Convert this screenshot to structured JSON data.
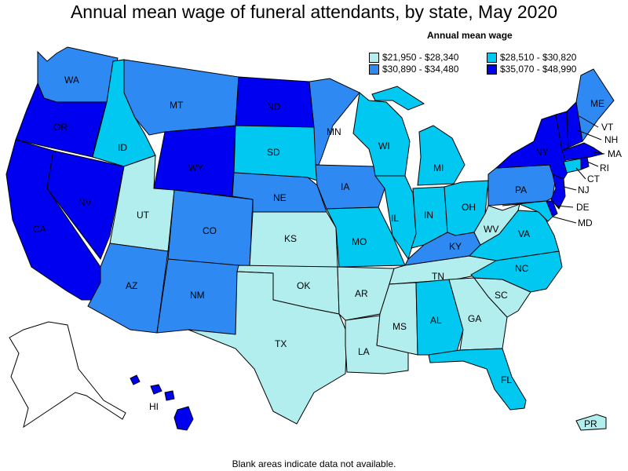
{
  "title": "Annual mean wage of funeral attendants, by state, May 2020",
  "legend": {
    "title": "Annual mean wage",
    "items": [
      {
        "label": "$21,950 - $28,340",
        "color": "#b3eeee"
      },
      {
        "label": "$28,510 - $30,820",
        "color": "#00c8f0"
      },
      {
        "label": "$30,890 - $34,480",
        "color": "#2e8af2"
      },
      {
        "label": "$35,070 - $48,990",
        "color": "#0000f0"
      }
    ]
  },
  "footnote": "Blank areas indicate data not available.",
  "states": {
    "WA": {
      "label": "WA",
      "tier": 2
    },
    "OR": {
      "label": "OR",
      "tier": 3
    },
    "CA": {
      "label": "CA",
      "tier": 3
    },
    "NV": {
      "label": "NV",
      "tier": 3
    },
    "ID": {
      "label": "ID",
      "tier": 1
    },
    "MT": {
      "label": "MT",
      "tier": 2
    },
    "WY": {
      "label": "WY",
      "tier": 3
    },
    "UT": {
      "label": "UT",
      "tier": 0
    },
    "AZ": {
      "label": "AZ",
      "tier": 2
    },
    "CO": {
      "label": "CO",
      "tier": 2
    },
    "NM": {
      "label": "NM",
      "tier": 2
    },
    "ND": {
      "label": "ND",
      "tier": 3
    },
    "SD": {
      "label": "SD",
      "tier": 1
    },
    "NE": {
      "label": "NE",
      "tier": 2
    },
    "KS": {
      "label": "KS",
      "tier": 0
    },
    "OK": {
      "label": "OK",
      "tier": 0
    },
    "TX": {
      "label": "TX",
      "tier": 0
    },
    "MN": {
      "label": "MN",
      "tier": 2
    },
    "IA": {
      "label": "IA",
      "tier": 2
    },
    "MO": {
      "label": "MO",
      "tier": 1
    },
    "AR": {
      "label": "AR",
      "tier": 0
    },
    "LA": {
      "label": "LA",
      "tier": 0
    },
    "WI": {
      "label": "WI",
      "tier": 1
    },
    "IL": {
      "label": "IL",
      "tier": 1
    },
    "MI": {
      "label": "MI",
      "tier": 1
    },
    "IN": {
      "label": "IN",
      "tier": 1
    },
    "OH": {
      "label": "OH",
      "tier": 1
    },
    "KY": {
      "label": "KY",
      "tier": 2
    },
    "TN": {
      "label": "TN",
      "tier": 0
    },
    "MS": {
      "label": "MS",
      "tier": 0
    },
    "AL": {
      "label": "AL",
      "tier": 1
    },
    "GA": {
      "label": "GA",
      "tier": 0
    },
    "FL": {
      "label": "FL",
      "tier": 1
    },
    "SC": {
      "label": "SC",
      "tier": 0
    },
    "NC": {
      "label": "NC",
      "tier": 1
    },
    "VA": {
      "label": "VA",
      "tier": 1
    },
    "WV": {
      "label": "WV",
      "tier": 0
    },
    "PA": {
      "label": "PA",
      "tier": 2
    },
    "NY": {
      "label": "NY",
      "tier": 3
    },
    "ME": {
      "label": "ME",
      "tier": 2
    },
    "VT": {
      "label": "VT",
      "tier": 3
    },
    "NH": {
      "label": "NH",
      "tier": 3
    },
    "MA": {
      "label": "MA",
      "tier": 3
    },
    "RI": {
      "label": "RI",
      "tier": 3
    },
    "CT": {
      "label": "CT",
      "tier": 1
    },
    "NJ": {
      "label": "NJ",
      "tier": 3
    },
    "DE": {
      "label": "DE",
      "tier": 3
    },
    "MD": {
      "label": "MD",
      "tier": 1
    },
    "HI": {
      "label": "HI",
      "tier": 3
    },
    "PR": {
      "label": "PR",
      "tier": 0
    },
    "AK": {
      "label": "",
      "tier": -1
    }
  }
}
